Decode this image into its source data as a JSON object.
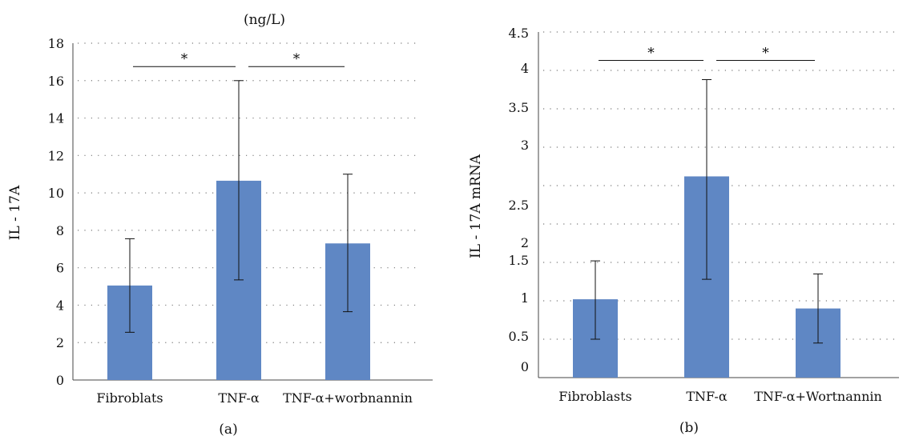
{
  "chart_data": [
    {
      "id": "a",
      "type": "bar",
      "title": "(ng/L)",
      "caption": "(a)",
      "ylabel": "IL - 17A",
      "xlabel": "",
      "categories": [
        "Fibroblats",
        "TNF-α",
        "TNF-α+worbnannin"
      ],
      "series": [
        {
          "values": [
            5.05,
            10.65,
            7.3
          ],
          "error_low": [
            2.55,
            5.35,
            3.65
          ],
          "error_high": [
            7.55,
            16.0,
            11.0
          ]
        }
      ],
      "ylim": [
        0,
        18
      ],
      "yticks": [
        "0",
        "2",
        "4",
        "6",
        "8",
        "10",
        "12",
        "14",
        "16",
        "18"
      ],
      "grid": "dotted horizontal",
      "legend": "none",
      "significance": [
        {
          "from": 0,
          "to": 1,
          "y": 16.75,
          "label": "*"
        },
        {
          "from": 1,
          "to": 2,
          "y": 16.75,
          "label": "*"
        }
      ],
      "bar_color": "#5f87c4"
    },
    {
      "id": "b",
      "type": "bar",
      "title": "",
      "caption": "(b)",
      "ylabel": "IL - 17A mRNA",
      "xlabel": "",
      "categories": [
        "Fibroblasts",
        "TNF-α",
        "TNF-α+Wortnannin"
      ],
      "series": [
        {
          "values": [
            1.02,
            2.62,
            0.9
          ],
          "error_low": [
            0.5,
            1.28,
            0.45
          ],
          "error_high": [
            1.52,
            3.88,
            1.35
          ]
        }
      ],
      "ylim": [
        0,
        4.5
      ],
      "yticks": [
        "0",
        "0.5",
        "1",
        "1.5",
        "2",
        "2.5",
        "3",
        "3.5",
        "4",
        "4.5"
      ],
      "grid": "dotted horizontal",
      "legend": "none",
      "significance": [
        {
          "from": 0,
          "to": 1,
          "y": 4.13,
          "label": "*"
        },
        {
          "from": 1,
          "to": 2,
          "y": 4.13,
          "label": "*"
        }
      ],
      "bar_color": "#5f87c4"
    }
  ]
}
